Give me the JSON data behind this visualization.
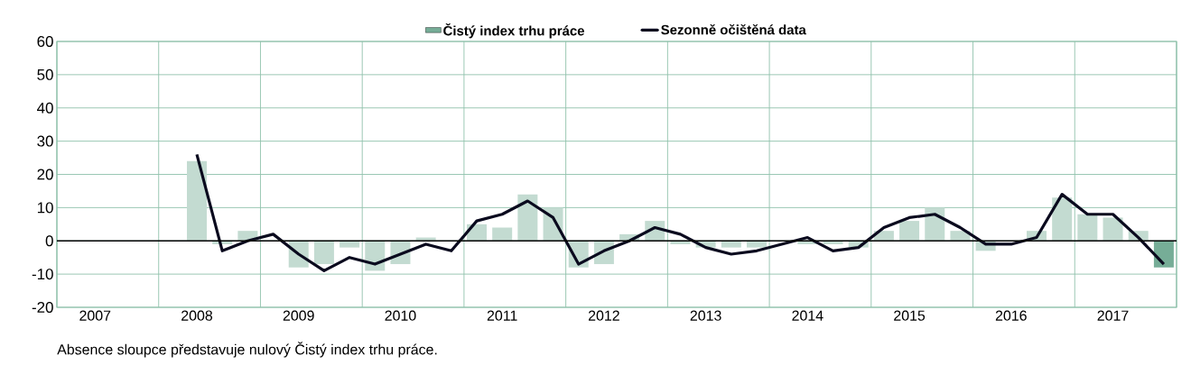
{
  "chart_data": {
    "type": "bar",
    "categories": [
      null,
      "2007",
      null,
      null,
      null,
      "2008",
      null,
      null,
      null,
      "2009",
      null,
      null,
      null,
      "2010",
      null,
      null,
      null,
      "2011",
      null,
      null,
      null,
      "2012",
      null,
      null,
      null,
      "2013",
      null,
      null,
      null,
      "2014",
      null,
      null,
      null,
      "2015",
      null,
      null,
      null,
      "2016",
      null,
      null,
      null,
      "2017",
      null,
      null
    ],
    "series": [
      {
        "name": "Čistý index trhu práce",
        "color": "#76ad97",
        "colors": [
          "#c3dbd1",
          "#c3dbd1",
          "#c3dbd1",
          "#c3dbd1",
          "#c3dbd1",
          "#c3dbd1",
          "#c3dbd1",
          "#c3dbd1",
          "#c3dbd1",
          "#c3dbd1",
          "#c3dbd1",
          "#c3dbd1",
          "#c3dbd1",
          "#c3dbd1",
          "#c3dbd1",
          "#c3dbd1",
          "#c3dbd1",
          "#c3dbd1",
          "#c3dbd1",
          "#c3dbd1",
          "#c3dbd1",
          "#c3dbd1",
          "#c3dbd1",
          "#c3dbd1",
          "#c3dbd1",
          "#c3dbd1",
          "#c3dbd1",
          "#c3dbd1",
          "#c3dbd1",
          "#c3dbd1",
          "#c3dbd1",
          "#c3dbd1",
          "#c3dbd1",
          "#c3dbd1",
          "#c3dbd1",
          "#c3dbd1",
          "#c3dbd1",
          "#c3dbd1",
          "#c3dbd1",
          "#c3dbd1",
          "#c3dbd1",
          "#c3dbd1",
          "#c3dbd1",
          "#76ad97"
        ],
        "values": [
          0,
          0,
          0,
          0,
          0,
          24,
          -1,
          3,
          0,
          -8,
          -7,
          -2,
          -9,
          -7,
          1,
          0,
          5,
          4,
          14,
          10,
          -8,
          -7,
          2,
          6,
          -1,
          -2,
          -2,
          -2,
          0,
          -1,
          -1,
          -2,
          3,
          6,
          10,
          3,
          -3,
          0,
          3,
          13,
          8,
          7,
          3,
          -8
        ]
      },
      {
        "name": "Sezonně očištěná data",
        "type": "line",
        "color": "#0a0a1e",
        "values": [
          null,
          null,
          null,
          null,
          null,
          26,
          -3,
          0,
          2,
          -4,
          -9,
          -5,
          -7,
          -4,
          -1,
          -3,
          6,
          8,
          12,
          7,
          -7,
          -3,
          0,
          4,
          2,
          -2,
          -4,
          -3,
          -1,
          1,
          -3,
          -2,
          4,
          7,
          8,
          4,
          -1,
          -1,
          1,
          14,
          8,
          8,
          1,
          -7
        ]
      }
    ],
    "ylim": [
      -20,
      60
    ],
    "yticks": [
      -20,
      -10,
      0,
      10,
      20,
      30,
      40,
      50,
      60
    ],
    "grid": true,
    "legend": "top",
    "ref_lines": [
      {
        "axis": "y",
        "value": 0,
        "color": "#000000"
      }
    ],
    "annotations": [
      "Absence sloupce představuje nulový Čistý index trhu práce."
    ]
  }
}
